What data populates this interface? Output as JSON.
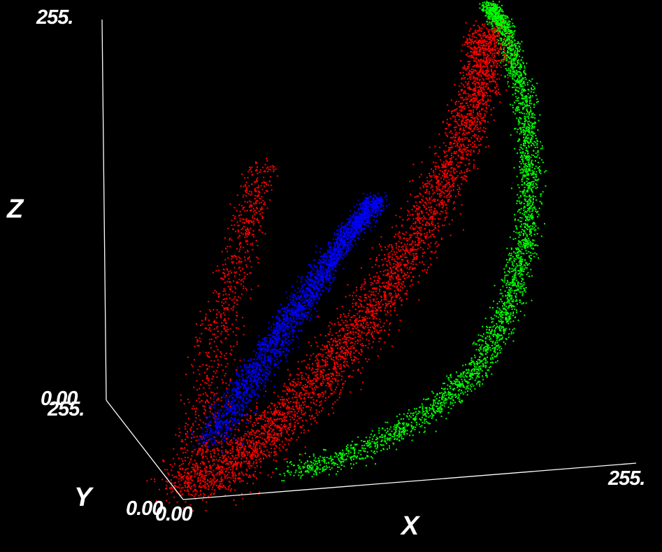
{
  "chart_data": {
    "type": "scatter",
    "projection": "3d",
    "background": "#000000",
    "axes": {
      "x": {
        "label": "X",
        "range": [
          0,
          255
        ],
        "tick_labels": [
          "0.00",
          "255."
        ]
      },
      "y": {
        "label": "Y",
        "range": [
          0,
          255
        ],
        "tick_labels": [
          "0.00",
          "255."
        ]
      },
      "z": {
        "label": "Z",
        "range": [
          0,
          255
        ],
        "tick_labels": [
          "0.00",
          "255."
        ]
      }
    },
    "grid": false,
    "legend": "none",
    "axis_color": "#ffffff",
    "series": [
      {
        "color": "#ff0000",
        "curve": [
          [
            2,
            12,
            4
          ],
          [
            28,
            30,
            10
          ],
          [
            52,
            54,
            22
          ],
          [
            80,
            78,
            40
          ],
          [
            110,
            102,
            66
          ],
          [
            138,
            130,
            98
          ],
          [
            168,
            158,
            138
          ],
          [
            192,
            186,
            178
          ],
          [
            206,
            210,
            212
          ],
          [
            212,
            230,
            235
          ]
        ],
        "branch": [
          [
            2,
            12,
            4
          ],
          [
            20,
            60,
            30
          ],
          [
            40,
            110,
            80
          ],
          [
            60,
            150,
            130
          ],
          [
            76,
            180,
            170
          ]
        ],
        "spread": 14
      },
      {
        "color": "#0000ff",
        "curve": [
          [
            24,
            55,
            22
          ],
          [
            48,
            78,
            50
          ],
          [
            72,
            100,
            78
          ],
          [
            96,
            120,
            106
          ],
          [
            118,
            138,
            132
          ],
          [
            136,
            150,
            150
          ]
        ],
        "spread": 8
      },
      {
        "color": "#00ff00",
        "curve": [
          [
            65,
            28,
            4
          ],
          [
            105,
            40,
            12
          ],
          [
            145,
            55,
            28
          ],
          [
            178,
            72,
            52
          ],
          [
            200,
            92,
            86
          ],
          [
            214,
            118,
            126
          ],
          [
            222,
            150,
            168
          ],
          [
            224,
            185,
            205
          ],
          [
            220,
            220,
            238
          ],
          [
            215,
            245,
            248
          ]
        ],
        "spread": 7
      }
    ]
  }
}
